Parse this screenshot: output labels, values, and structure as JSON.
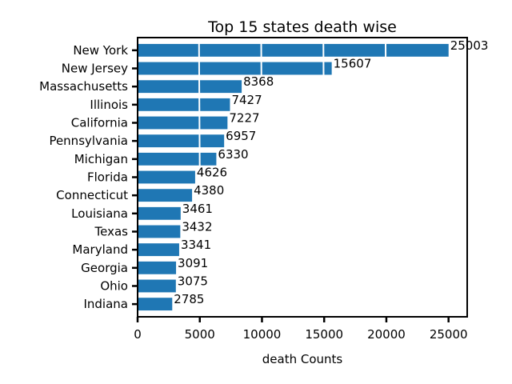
{
  "chart_data": {
    "type": "bar",
    "orientation": "horizontal",
    "title": "Top 15 states death wise",
    "xlabel": "death Counts",
    "ylabel": "",
    "xlim": [
      0,
      26500
    ],
    "xticks": [
      0,
      5000,
      10000,
      15000,
      20000,
      25000
    ],
    "grid": false,
    "bar_color": "#1f77b4",
    "categories": [
      "New York",
      "New Jersey",
      "Massachusetts",
      "Illinois",
      "California",
      "Pennsylvania",
      "Michigan",
      "Florida",
      "Connecticut",
      "Louisiana",
      "Texas",
      "Maryland",
      "Georgia",
      "Ohio",
      "Indiana"
    ],
    "values": [
      25003,
      15607,
      8368,
      7427,
      7227,
      6957,
      6330,
      4626,
      4380,
      3461,
      3432,
      3341,
      3091,
      3075,
      2785
    ]
  }
}
